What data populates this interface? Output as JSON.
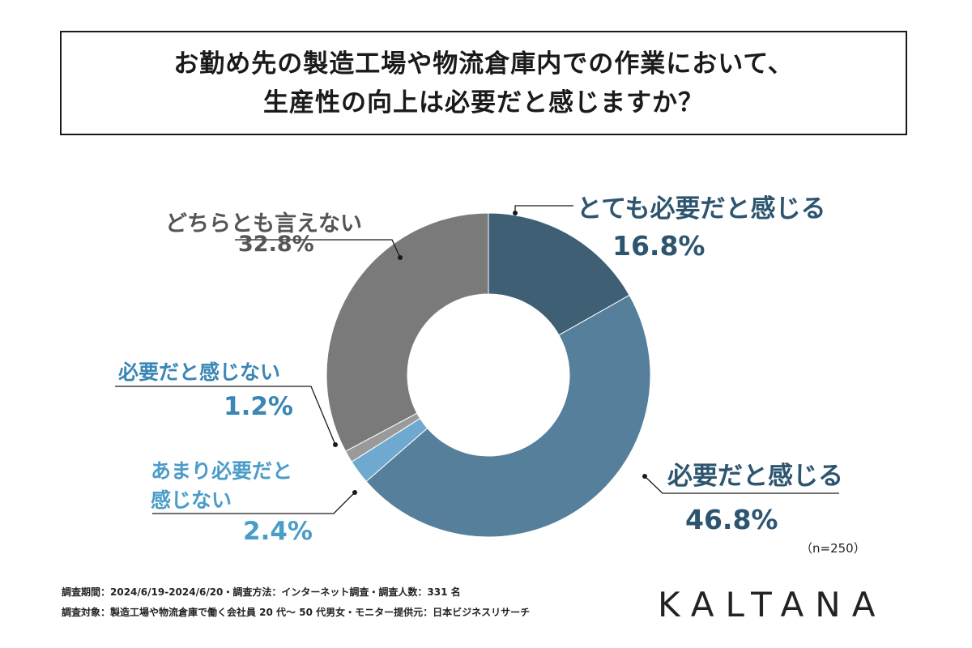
{
  "title": {
    "line1": "お勤め先の製造工場や物流倉庫内での作業において、",
    "line2": "生産性の向上は必要だと感じますか？"
  },
  "labels": {
    "very_necessary": "とても必要だと感じる",
    "very_necessary_pct": "16.8%",
    "necessary": "必要だと感じる",
    "necessary_pct": "46.8%",
    "not_very_necessary_line1": "あまり必要だと",
    "not_very_necessary_line2": "感じない",
    "not_very_necessary_pct": "2.4%",
    "not_necessary": "必要だと感じない",
    "not_necessary_pct": "1.2%",
    "neutral": "どちらとも言えない",
    "neutral_pct": "32.8%"
  },
  "chart_data": {
    "type": "pie",
    "donut": true,
    "categories": [
      "とても必要だと感じる",
      "必要だと感じる",
      "あまり必要だと感じない",
      "必要だと感じない",
      "どちらとも言えない"
    ],
    "values": [
      16.8,
      46.8,
      2.4,
      1.2,
      32.8
    ],
    "colors": [
      "#3f5f75",
      "#557f9b",
      "#6fa9cf",
      "#9a9a9a",
      "#7a7a7a"
    ],
    "start": "12 o'clock, clockwise"
  },
  "note": "（n=250）",
  "footer": {
    "line1": "調査期間：2024/6/19-2024/6/20・調査方法：インターネット調査・調査人数：331 名",
    "line2": "調査対象：製造工場や物流倉庫で働く会社員 20 代〜 50 代男女・モニター提供元：日本ビジネスリサーチ"
  },
  "brand": "KALTANA"
}
